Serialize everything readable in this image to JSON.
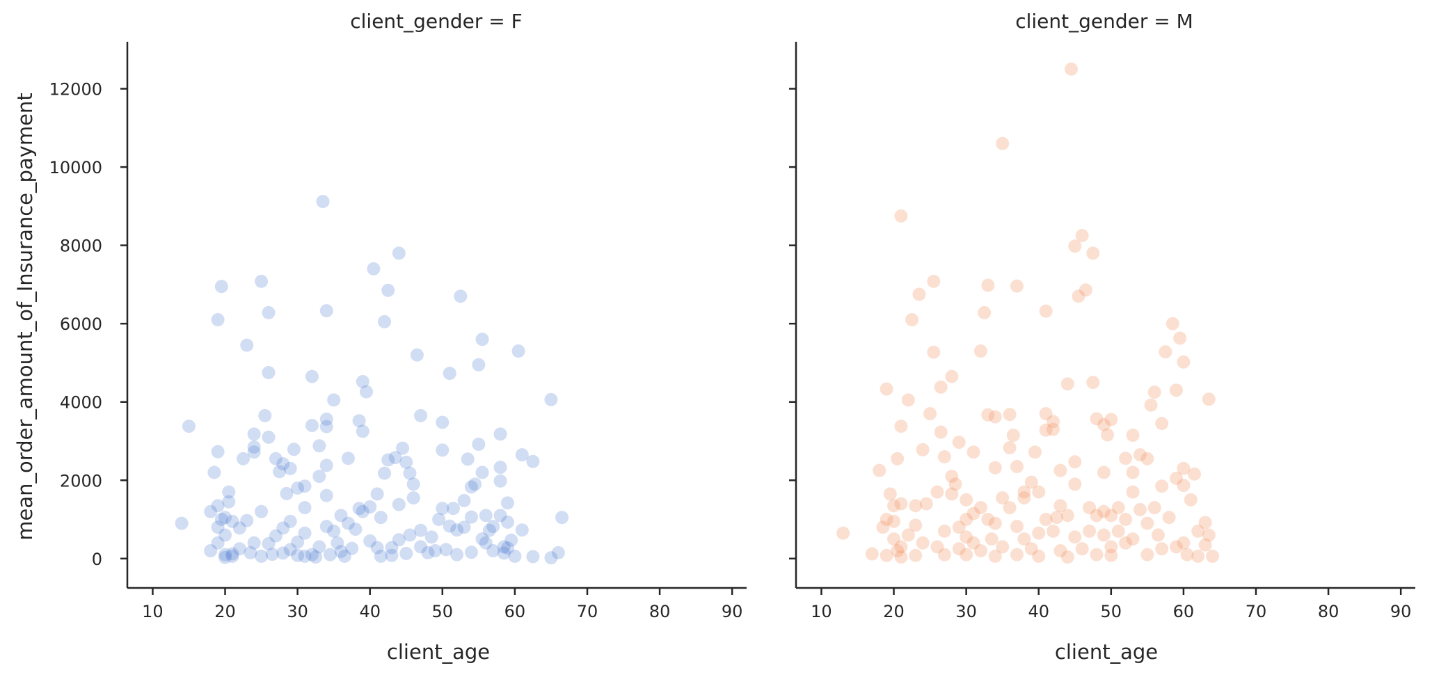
{
  "chart_data": [
    {
      "type": "scatter",
      "facet": "client_gender = F",
      "title": "client_gender = F",
      "xlabel": "client_age",
      "ylabel": "mean_order_amount_of_Insurance_payment",
      "xlim": [
        6.5,
        92
      ],
      "ylim": [
        -750,
        13200
      ],
      "xticks": [
        10,
        20,
        30,
        40,
        50,
        60,
        70,
        80,
        90
      ],
      "yticks": [
        0,
        2000,
        4000,
        6000,
        8000,
        10000,
        12000
      ],
      "color": "#4878d0",
      "opacity": 0.25,
      "grid": false,
      "points": [
        [
          14,
          900
        ],
        [
          15,
          3380
        ],
        [
          18,
          1200
        ],
        [
          18,
          200
        ],
        [
          18.5,
          2200
        ],
        [
          19,
          6100
        ],
        [
          19,
          2730
        ],
        [
          19,
          1350
        ],
        [
          19,
          800
        ],
        [
          19,
          400
        ],
        [
          19.5,
          6950
        ],
        [
          19.5,
          1000
        ],
        [
          20,
          1050
        ],
        [
          20,
          600
        ],
        [
          20,
          100
        ],
        [
          20,
          30
        ],
        [
          20.5,
          1700
        ],
        [
          20.5,
          1450
        ],
        [
          21,
          950
        ],
        [
          21,
          120
        ],
        [
          21,
          60
        ],
        [
          22,
          780
        ],
        [
          22,
          250
        ],
        [
          22.5,
          2550
        ],
        [
          23,
          5450
        ],
        [
          23,
          970
        ],
        [
          23.5,
          150
        ],
        [
          24,
          3180
        ],
        [
          24,
          2850
        ],
        [
          24,
          2720
        ],
        [
          24,
          400
        ],
        [
          25,
          7080
        ],
        [
          25,
          1200
        ],
        [
          25,
          60
        ],
        [
          25.5,
          3650
        ],
        [
          26,
          6280
        ],
        [
          26,
          4750
        ],
        [
          26,
          3100
        ],
        [
          26,
          380
        ],
        [
          26.5,
          110
        ],
        [
          27,
          2550
        ],
        [
          27,
          580
        ],
        [
          27.5,
          2220
        ],
        [
          28,
          2420
        ],
        [
          28,
          780
        ],
        [
          28,
          140
        ],
        [
          28.5,
          1660
        ],
        [
          29,
          2300
        ],
        [
          29,
          950
        ],
        [
          29,
          230
        ],
        [
          29.5,
          2790
        ],
        [
          30,
          1800
        ],
        [
          30,
          420
        ],
        [
          30,
          80
        ],
        [
          31,
          1850
        ],
        [
          31,
          1300
        ],
        [
          31,
          650
        ],
        [
          31,
          60
        ],
        [
          32,
          4650
        ],
        [
          32,
          3400
        ],
        [
          32,
          100
        ],
        [
          32.5,
          40
        ],
        [
          33,
          2880
        ],
        [
          33,
          2100
        ],
        [
          33,
          300
        ],
        [
          33.5,
          9120
        ],
        [
          34,
          6330
        ],
        [
          34,
          3560
        ],
        [
          34,
          3370
        ],
        [
          34,
          2380
        ],
        [
          34,
          1610
        ],
        [
          34,
          820
        ],
        [
          34.5,
          100
        ],
        [
          35,
          4050
        ],
        [
          35,
          700
        ],
        [
          35.5,
          400
        ],
        [
          36,
          1100
        ],
        [
          36,
          180
        ],
        [
          36.5,
          60
        ],
        [
          37,
          2560
        ],
        [
          37,
          900
        ],
        [
          37.5,
          260
        ],
        [
          38,
          750
        ],
        [
          38.5,
          1280
        ],
        [
          38.5,
          3520
        ],
        [
          39,
          4520
        ],
        [
          39,
          3250
        ],
        [
          39,
          1200
        ],
        [
          39.5,
          4260
        ],
        [
          40,
          1320
        ],
        [
          40,
          450
        ],
        [
          40.5,
          7400
        ],
        [
          41,
          1650
        ],
        [
          41,
          280
        ],
        [
          41.5,
          1050
        ],
        [
          41.5,
          60
        ],
        [
          42,
          2180
        ],
        [
          42,
          6050
        ],
        [
          42.5,
          2520
        ],
        [
          42.5,
          6850
        ],
        [
          43,
          280
        ],
        [
          43,
          80
        ],
        [
          43.5,
          2580
        ],
        [
          44,
          7800
        ],
        [
          44,
          1380
        ],
        [
          44,
          480
        ],
        [
          44.5,
          2820
        ],
        [
          45,
          2460
        ],
        [
          45,
          130
        ],
        [
          45.5,
          600
        ],
        [
          45.5,
          2180
        ],
        [
          46,
          1550
        ],
        [
          46,
          1900
        ],
        [
          46.5,
          5200
        ],
        [
          47,
          3650
        ],
        [
          47,
          300
        ],
        [
          47,
          720
        ],
        [
          48,
          150
        ],
        [
          48.5,
          550
        ],
        [
          49,
          200
        ],
        [
          49.5,
          1000
        ],
        [
          50,
          1280
        ],
        [
          50,
          2770
        ],
        [
          50,
          3480
        ],
        [
          50.5,
          230
        ],
        [
          51,
          4730
        ],
        [
          51,
          830
        ],
        [
          51.5,
          1280
        ],
        [
          52,
          730
        ],
        [
          52,
          100
        ],
        [
          52.5,
          6700
        ],
        [
          53,
          1480
        ],
        [
          53,
          800
        ],
        [
          53.5,
          2540
        ],
        [
          54,
          1830
        ],
        [
          54,
          1060
        ],
        [
          54,
          160
        ],
        [
          54.5,
          1900
        ],
        [
          55,
          2920
        ],
        [
          55,
          4950
        ],
        [
          55.5,
          5600
        ],
        [
          55.5,
          2200
        ],
        [
          55.5,
          500
        ],
        [
          56,
          400
        ],
        [
          56,
          1100
        ],
        [
          56.5,
          720
        ],
        [
          57,
          820
        ],
        [
          57,
          200
        ],
        [
          58,
          3180
        ],
        [
          58,
          2330
        ],
        [
          58,
          1980
        ],
        [
          58,
          1100
        ],
        [
          58.5,
          300
        ],
        [
          58.5,
          140
        ],
        [
          59,
          1420
        ],
        [
          59,
          930
        ],
        [
          59,
          270
        ],
        [
          59.5,
          470
        ],
        [
          60,
          60
        ],
        [
          60.5,
          5300
        ],
        [
          61,
          2650
        ],
        [
          61,
          730
        ],
        [
          62.5,
          2480
        ],
        [
          62.5,
          50
        ],
        [
          65,
          4060
        ],
        [
          65,
          20
        ],
        [
          66,
          150
        ],
        [
          66.5,
          1050
        ]
      ]
    },
    {
      "type": "scatter",
      "facet": "client_gender = M",
      "title": "client_gender = M",
      "xlabel": "client_age",
      "xlim": [
        6.5,
        92
      ],
      "ylim": [
        -750,
        13200
      ],
      "xticks": [
        10,
        20,
        30,
        40,
        50,
        60,
        70,
        80,
        90
      ],
      "yticks": [
        0,
        2000,
        4000,
        6000,
        8000,
        10000,
        12000
      ],
      "color": "#ee854a",
      "opacity": 0.25,
      "grid": false,
      "points": [
        [
          13,
          650
        ],
        [
          17,
          120
        ],
        [
          18,
          2250
        ],
        [
          18.5,
          800
        ],
        [
          19,
          4330
        ],
        [
          19,
          1000
        ],
        [
          19,
          80
        ],
        [
          19.5,
          1650
        ],
        [
          20,
          1350
        ],
        [
          20,
          950
        ],
        [
          20,
          500
        ],
        [
          20.5,
          2550
        ],
        [
          20.5,
          200
        ],
        [
          21,
          8750
        ],
        [
          21,
          3380
        ],
        [
          21,
          1400
        ],
        [
          21,
          300
        ],
        [
          21,
          40
        ],
        [
          22,
          4050
        ],
        [
          22,
          600
        ],
        [
          22.5,
          6100
        ],
        [
          23,
          1350
        ],
        [
          23,
          850
        ],
        [
          23,
          80
        ],
        [
          23.5,
          6750
        ],
        [
          24,
          2780
        ],
        [
          24,
          400
        ],
        [
          24.5,
          1400
        ],
        [
          25,
          3700
        ],
        [
          25.5,
          7080
        ],
        [
          25.5,
          5270
        ],
        [
          26,
          1700
        ],
        [
          26,
          300
        ],
        [
          26.5,
          4380
        ],
        [
          26.5,
          3230
        ],
        [
          27,
          2600
        ],
        [
          27,
          700
        ],
        [
          27,
          100
        ],
        [
          28,
          4650
        ],
        [
          28,
          2100
        ],
        [
          28,
          1650
        ],
        [
          28.5,
          1900
        ],
        [
          29,
          2970
        ],
        [
          29,
          800
        ],
        [
          29,
          250
        ],
        [
          30,
          1500
        ],
        [
          30,
          1000
        ],
        [
          30,
          550
        ],
        [
          30,
          100
        ],
        [
          31,
          2720
        ],
        [
          31,
          1150
        ],
        [
          31,
          400
        ],
        [
          32,
          5300
        ],
        [
          32,
          1300
        ],
        [
          32,
          200
        ],
        [
          32.5,
          6280
        ],
        [
          33,
          6980
        ],
        [
          33,
          3670
        ],
        [
          33,
          1000
        ],
        [
          33.5,
          500
        ],
        [
          34,
          2320
        ],
        [
          34,
          3620
        ],
        [
          34,
          900
        ],
        [
          34,
          60
        ],
        [
          35,
          10600
        ],
        [
          35,
          1550
        ],
        [
          35,
          300
        ],
        [
          36,
          3680
        ],
        [
          36,
          2830
        ],
        [
          36,
          1300
        ],
        [
          36.5,
          3150
        ],
        [
          37,
          6960
        ],
        [
          37,
          2350
        ],
        [
          37,
          820
        ],
        [
          37,
          100
        ],
        [
          38,
          1700
        ],
        [
          38,
          1550
        ],
        [
          38,
          500
        ],
        [
          39,
          1950
        ],
        [
          39,
          250
        ],
        [
          39.5,
          2720
        ],
        [
          40,
          1700
        ],
        [
          40,
          650
        ],
        [
          40,
          60
        ],
        [
          41,
          6320
        ],
        [
          41,
          3700
        ],
        [
          41,
          3280
        ],
        [
          41,
          1000
        ],
        [
          42,
          3500
        ],
        [
          42,
          3300
        ],
        [
          42,
          700
        ],
        [
          42.5,
          1050
        ],
        [
          43,
          2250
        ],
        [
          43,
          1350
        ],
        [
          43,
          200
        ],
        [
          44,
          4460
        ],
        [
          44,
          1100
        ],
        [
          44,
          40
        ],
        [
          44.5,
          12500
        ],
        [
          45,
          2470
        ],
        [
          45,
          7980
        ],
        [
          45,
          1900
        ],
        [
          45,
          550
        ],
        [
          45.5,
          6700
        ],
        [
          46,
          8250
        ],
        [
          46,
          250
        ],
        [
          46.5,
          6860
        ],
        [
          47,
          1300
        ],
        [
          47,
          700
        ],
        [
          47.5,
          7800
        ],
        [
          47.5,
          4500
        ],
        [
          48,
          3570
        ],
        [
          48,
          1100
        ],
        [
          48,
          100
        ],
        [
          49,
          3420
        ],
        [
          49,
          2200
        ],
        [
          49,
          1200
        ],
        [
          49,
          600
        ],
        [
          49.5,
          3160
        ],
        [
          50,
          3550
        ],
        [
          50,
          1100
        ],
        [
          50,
          300
        ],
        [
          50,
          80
        ],
        [
          51,
          1300
        ],
        [
          51,
          700
        ],
        [
          52,
          2560
        ],
        [
          52,
          1000
        ],
        [
          52,
          400
        ],
        [
          53,
          3150
        ],
        [
          53,
          2200
        ],
        [
          53,
          1700
        ],
        [
          53,
          500
        ],
        [
          54,
          2650
        ],
        [
          54,
          1250
        ],
        [
          55,
          2550
        ],
        [
          55,
          900
        ],
        [
          55,
          100
        ],
        [
          55.5,
          3920
        ],
        [
          56,
          4250
        ],
        [
          56,
          1300
        ],
        [
          56.5,
          600
        ],
        [
          57,
          3450
        ],
        [
          57,
          1850
        ],
        [
          57,
          250
        ],
        [
          57.5,
          5280
        ],
        [
          58,
          1050
        ],
        [
          58.5,
          6000
        ],
        [
          59,
          4300
        ],
        [
          59,
          2050
        ],
        [
          59,
          300
        ],
        [
          59.5,
          5630
        ],
        [
          60,
          5020
        ],
        [
          60,
          2300
        ],
        [
          60,
          1870
        ],
        [
          60,
          400
        ],
        [
          60.5,
          100
        ],
        [
          61,
          1500
        ],
        [
          61.5,
          2160
        ],
        [
          62,
          700
        ],
        [
          62,
          60
        ],
        [
          63,
          920
        ],
        [
          63,
          350
        ],
        [
          63.5,
          4070
        ],
        [
          63.5,
          600
        ],
        [
          64,
          60
        ]
      ]
    }
  ]
}
